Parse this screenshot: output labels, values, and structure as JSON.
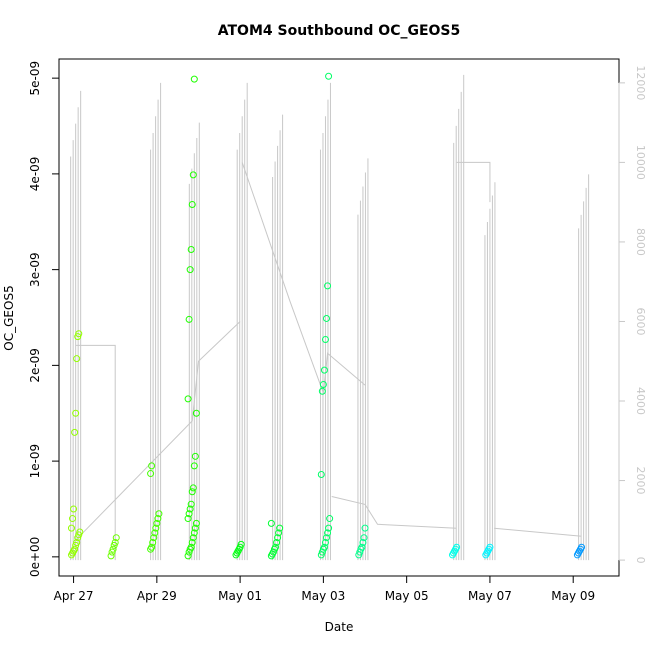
{
  "chart_data": {
    "type": "scatter",
    "title": "ATOM4 Southbound OC_GEOS5",
    "xlabel": "Date",
    "ylabel": "OC_GEOS5",
    "x_ticks": [
      "Apr 27",
      "Apr 29",
      "May 01",
      "May 03",
      "May 05",
      "May 07",
      "May 09"
    ],
    "x_tick_days": [
      0,
      2,
      4,
      6,
      8,
      10,
      12
    ],
    "xlim_days": [
      -0.35,
      13.1
    ],
    "y_ticks": [
      "0e+00",
      "1e-09",
      "2e-09",
      "3e-09",
      "4e-09",
      "5e-09"
    ],
    "y_tick_values": [
      0,
      1e-09,
      2e-09,
      3e-09,
      4e-09,
      5e-09
    ],
    "ylim": [
      -2e-10,
      5.2e-09
    ],
    "y2_ticks": [
      "0",
      "2000",
      "4000",
      "6000",
      "8000",
      "10000",
      "12000"
    ],
    "y2_tick_values": [
      0,
      2000,
      4000,
      6000,
      8000,
      10000,
      12000
    ],
    "y2lim": [
      -400,
      12600
    ],
    "grid": false,
    "point_series": {
      "name": "OC_GEOS5",
      "color_scale": "time (green to blue)",
      "points": [
        {
          "day": 0.05,
          "values": [
            2e-11,
            4e-11,
            6e-11,
            8e-11,
            1.2e-10,
            1.5e-10,
            2e-10,
            2.3e-10,
            2.6e-10,
            3e-10,
            4e-10,
            5e-10,
            1.3e-09,
            1.5e-09,
            2.07e-09,
            2.3e-09,
            2.33e-09
          ]
        },
        {
          "day": 1.0,
          "values": [
            1e-11,
            5e-11,
            8e-11,
            1.2e-10,
            1.5e-10,
            2e-10
          ]
        },
        {
          "day": 1.95,
          "values": [
            8e-11,
            1e-10,
            1.5e-10,
            2e-10,
            2.5e-10,
            3e-10,
            3.5e-10,
            4e-10,
            4.5e-10,
            8.7e-10,
            9.5e-10
          ]
        },
        {
          "day": 2.85,
          "values": [
            1e-11,
            5e-11,
            8e-11,
            1e-10,
            1.5e-10,
            2e-10,
            2.5e-10,
            3e-10,
            3.5e-10,
            4e-10,
            4.5e-10,
            5e-10,
            5.5e-10,
            6.8e-10,
            7.2e-10,
            9.5e-10,
            1.05e-09,
            1.5e-09,
            1.65e-09,
            2.48e-09,
            3e-09,
            3.21e-09,
            3.68e-09,
            3.99e-09,
            4.99e-09
          ]
        },
        {
          "day": 4.0,
          "values": [
            2e-11,
            4e-11,
            6e-11,
            8e-11,
            1e-10,
            1.3e-10
          ]
        },
        {
          "day": 4.85,
          "values": [
            1e-11,
            3e-11,
            5e-11,
            8e-11,
            1e-10,
            1.5e-10,
            2e-10,
            2.5e-10,
            3e-10,
            3.5e-10
          ]
        },
        {
          "day": 6.05,
          "values": [
            2e-11,
            5e-11,
            8e-11,
            1e-10,
            1.5e-10,
            2e-10,
            2.5e-10,
            3e-10,
            4e-10,
            8.6e-10,
            1.73e-09,
            1.8e-09,
            1.95e-09,
            2.27e-09,
            2.49e-09,
            2.83e-09,
            5.02e-09
          ]
        },
        {
          "day": 6.95,
          "values": [
            2e-11,
            5e-11,
            8e-11,
            1e-10,
            1.5e-10,
            2e-10,
            3e-10
          ]
        },
        {
          "day": 9.2,
          "values": [
            2e-11,
            4e-11,
            6e-11,
            8e-11,
            1e-10
          ]
        },
        {
          "day": 10.0,
          "values": [
            2e-11,
            4e-11,
            6e-11,
            8e-11,
            1e-10
          ]
        },
        {
          "day": 12.2,
          "values": [
            2e-11,
            4e-11,
            6e-11,
            8e-11,
            1e-10
          ]
        }
      ]
    },
    "altitude_series": {
      "name": "altitude",
      "axis": "right",
      "color": "#c8c8c8",
      "profiles": [
        {
          "day": 0.05,
          "max": 11800
        },
        {
          "day": 1.97,
          "max": 12000
        },
        {
          "day": 2.9,
          "max": 11000
        },
        {
          "day": 4.05,
          "max": 12000
        },
        {
          "day": 4.9,
          "max": 11200
        },
        {
          "day": 6.05,
          "max": 12000
        },
        {
          "day": 6.95,
          "max": 10100
        },
        {
          "day": 9.25,
          "max": 12200
        },
        {
          "day": 10.0,
          "max": 9500
        },
        {
          "day": 12.25,
          "max": 9700
        }
      ],
      "connectors": [
        [
          [
            0.05,
            5400
          ],
          [
            1.0,
            5400
          ],
          [
            1.0,
            0
          ]
        ],
        [
          [
            0.05,
            500
          ],
          [
            2.85,
            3500
          ],
          [
            3.0,
            5000
          ],
          [
            4.0,
            6000
          ]
        ],
        [
          [
            4.05,
            10000
          ],
          [
            5.2,
            6500
          ],
          [
            6.0,
            4200
          ],
          [
            6.1,
            5200
          ],
          [
            7.0,
            4400
          ]
        ],
        [
          [
            6.2,
            1600
          ],
          [
            7.0,
            1400
          ],
          [
            7.3,
            900
          ],
          [
            9.2,
            800
          ]
        ],
        [
          [
            9.2,
            10000
          ],
          [
            10.0,
            10000
          ],
          [
            10.0,
            9000
          ]
        ],
        [
          [
            10.1,
            800
          ],
          [
            12.2,
            600
          ]
        ]
      ]
    }
  }
}
